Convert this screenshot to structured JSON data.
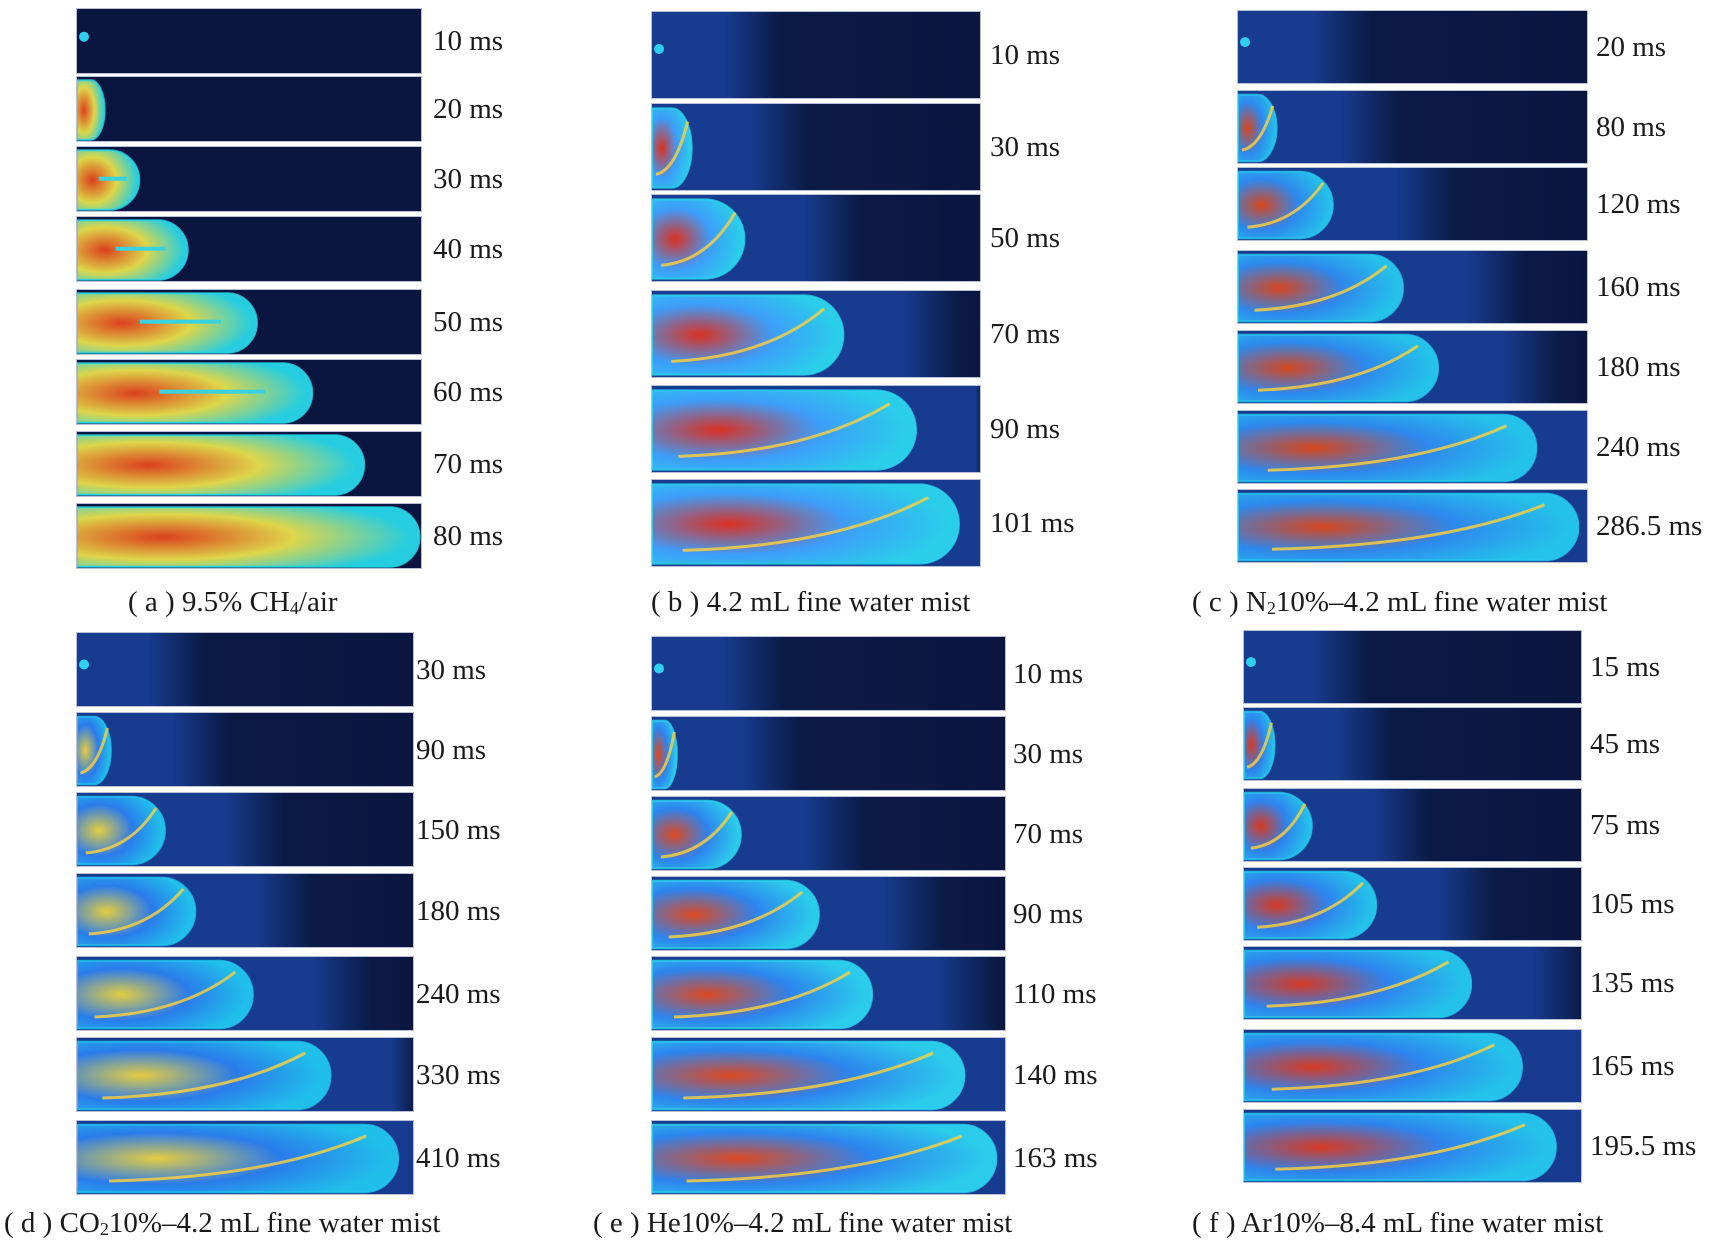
{
  "panels": [
    {
      "id": "a",
      "caption_prefix": "( a ) 9.5% CH",
      "caption_sub": "4",
      "caption_suffix": "/air",
      "frames": [
        {
          "time": "10 ms",
          "progress": 0.03
        },
        {
          "time": "20 ms",
          "progress": 0.08
        },
        {
          "time": "30 ms",
          "progress": 0.18
        },
        {
          "time": "40 ms",
          "progress": 0.32
        },
        {
          "time": "50 ms",
          "progress": 0.52
        },
        {
          "time": "60 ms",
          "progress": 0.68
        },
        {
          "time": "70 ms",
          "progress": 0.83
        },
        {
          "time": "80 ms",
          "progress": 0.99
        }
      ]
    },
    {
      "id": "b",
      "caption_prefix": "( b ) 4.2 mL fine water mist",
      "caption_sub": "",
      "caption_suffix": "",
      "frames": [
        {
          "time": "10 ms",
          "progress": 0.04
        },
        {
          "time": "30 ms",
          "progress": 0.12
        },
        {
          "time": "50 ms",
          "progress": 0.28
        },
        {
          "time": "70 ms",
          "progress": 0.58
        },
        {
          "time": "90 ms",
          "progress": 0.8
        },
        {
          "time": "101 ms",
          "progress": 0.93
        }
      ]
    },
    {
      "id": "c",
      "caption_prefix": "( c ) N",
      "caption_sub": "2",
      "caption_suffix": "10%–4.2 mL fine water mist",
      "frames": [
        {
          "time": "20 ms",
          "progress": 0.03
        },
        {
          "time": "80 ms",
          "progress": 0.11
        },
        {
          "time": "120 ms",
          "progress": 0.27
        },
        {
          "time": "160 ms",
          "progress": 0.47
        },
        {
          "time": "180 ms",
          "progress": 0.57
        },
        {
          "time": "240 ms",
          "progress": 0.85
        },
        {
          "time": "286.5 ms",
          "progress": 0.97
        }
      ]
    },
    {
      "id": "d",
      "caption_prefix": "( d ) CO",
      "caption_sub": "2",
      "caption_suffix": "10%–4.2 mL fine water mist",
      "frames": [
        {
          "time": "30 ms",
          "progress": 0.03
        },
        {
          "time": "90 ms",
          "progress": 0.1
        },
        {
          "time": "150 ms",
          "progress": 0.26
        },
        {
          "time": "180 ms",
          "progress": 0.35
        },
        {
          "time": "240 ms",
          "progress": 0.52
        },
        {
          "time": "330 ms",
          "progress": 0.75
        },
        {
          "time": "410 ms",
          "progress": 0.95
        }
      ]
    },
    {
      "id": "e",
      "caption_prefix": "( e ) He10%–4.2 mL fine water mist",
      "caption_sub": "",
      "caption_suffix": "",
      "frames": [
        {
          "time": "10 ms",
          "progress": 0.02
        },
        {
          "time": "30 ms",
          "progress": 0.07
        },
        {
          "time": "70 ms",
          "progress": 0.25
        },
        {
          "time": "90 ms",
          "progress": 0.47
        },
        {
          "time": "110 ms",
          "progress": 0.62
        },
        {
          "time": "140 ms",
          "progress": 0.88
        },
        {
          "time": "163 ms",
          "progress": 0.97
        }
      ]
    },
    {
      "id": "f",
      "caption_prefix": "( f ) Ar10%–8.4 mL fine water mist",
      "caption_sub": "",
      "caption_suffix": "",
      "frames": [
        {
          "time": "15 ms",
          "progress": 0.02
        },
        {
          "time": "45 ms",
          "progress": 0.09
        },
        {
          "time": "75 ms",
          "progress": 0.2
        },
        {
          "time": "105 ms",
          "progress": 0.39
        },
        {
          "time": "135 ms",
          "progress": 0.67
        },
        {
          "time": "165 ms",
          "progress": 0.82
        },
        {
          "time": "195.5 ms",
          "progress": 0.92
        }
      ]
    }
  ]
}
